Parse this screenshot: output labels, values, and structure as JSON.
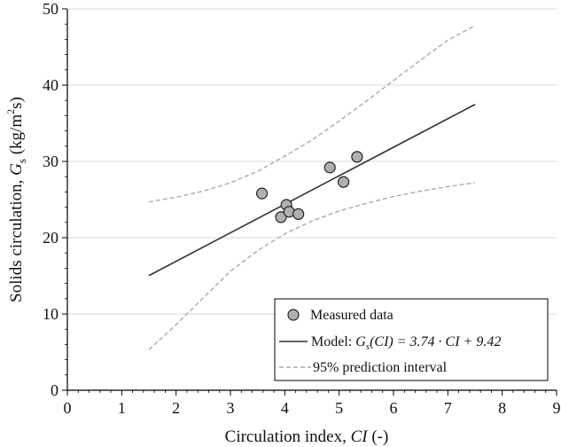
{
  "chart_data": {
    "type": "scatter",
    "xlabel": "Circulation index, CI (-)",
    "xlabel_parts": {
      "pre": "Circulation index, ",
      "italic": "CI",
      "post": " (-)"
    },
    "ylabel": "Solids circulation, Gs (kg/m2s)",
    "ylabel_parts": {
      "pre": "Solids circulation, ",
      "italic": "G",
      "sub": "s",
      "unit_pre": " (kg/m",
      "sup": "2",
      "unit_post": "s)"
    },
    "xlim": [
      0,
      9
    ],
    "ylim": [
      0,
      50
    ],
    "x_ticks": [
      0,
      1,
      2,
      3,
      4,
      5,
      6,
      7,
      8,
      9
    ],
    "y_ticks": [
      0,
      10,
      20,
      30,
      40,
      50
    ],
    "grid": "horizontal",
    "legend_position": "bottom-right",
    "series": [
      {
        "name": "Measured data",
        "kind": "scatter",
        "color": "#b0b0b0",
        "points": [
          {
            "x": 3.58,
            "y": 25.8
          },
          {
            "x": 3.93,
            "y": 22.7
          },
          {
            "x": 4.03,
            "y": 24.3
          },
          {
            "x": 4.08,
            "y": 23.4
          },
          {
            "x": 4.25,
            "y": 23.1
          },
          {
            "x": 4.83,
            "y": 29.2
          },
          {
            "x": 5.08,
            "y": 27.3
          },
          {
            "x": 5.33,
            "y": 30.6
          }
        ]
      },
      {
        "name": "Model: Gs(CI) = 3.74 · CI + 9.42",
        "name_parts": {
          "pre": "Model: ",
          "italic_g": "G",
          "sub": "s",
          "italic_rest": "(CI) = 3.74 · CI + 9.42"
        },
        "kind": "line",
        "color": "#333333",
        "x": [
          1.5,
          7.5
        ],
        "y": [
          15.03,
          37.47
        ]
      },
      {
        "name": "95% prediction interval",
        "kind": "dashed",
        "color": "#aaaaaa",
        "upper": {
          "x": [
            1.5,
            2.0,
            2.5,
            3.0,
            3.5,
            4.0,
            4.5,
            5.0,
            5.5,
            6.0,
            6.5,
            7.0,
            7.5
          ],
          "y": [
            24.7,
            25.3,
            26.1,
            27.2,
            28.7,
            30.7,
            32.8,
            35.3,
            37.9,
            40.6,
            43.3,
            45.9,
            47.8
          ]
        },
        "lower": {
          "x": [
            1.5,
            2.0,
            2.5,
            3.0,
            3.5,
            4.0,
            4.5,
            5.0,
            5.5,
            6.0,
            6.5,
            7.0,
            7.5
          ],
          "y": [
            5.3,
            8.6,
            12.1,
            15.6,
            18.3,
            20.5,
            22.2,
            23.5,
            24.5,
            25.4,
            26.1,
            26.7,
            27.2
          ]
        }
      }
    ]
  }
}
